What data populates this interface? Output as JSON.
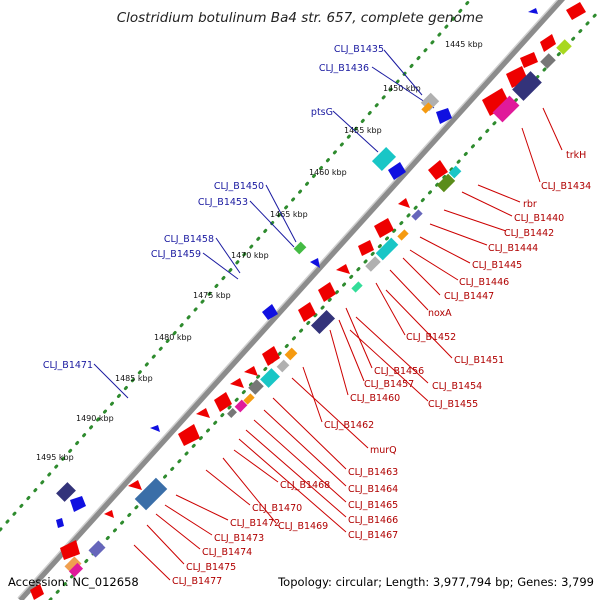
{
  "title": "Clostridium botulinum Ba4 str. 657, complete genome",
  "footer": {
    "accession": "Accession: NC_012658",
    "summary": "Topology: circular; Length: 3,977,794 bp; Genes: 3,799"
  },
  "ticks": [
    "1445 kbp",
    "1450 kbp",
    "1455 kbp",
    "1460 kbp",
    "1465 kbp",
    "1470 kbp",
    "1475 kbp",
    "1480 kbp",
    "1485 kbp",
    "1490 kbp",
    "1495 kbp"
  ],
  "outer_labels": [
    "CLJ_B1435",
    "CLJ_B1436",
    "ptsG",
    "CLJ_B1450",
    "CLJ_B1453",
    "CLJ_B1458",
    "CLJ_B1459",
    "CLJ_B1471"
  ],
  "inner_labels": [
    "trkH",
    "CLJ_B1434",
    "rbr",
    "CLJ_B1440",
    "CLJ_B1442",
    "CLJ_B1444",
    "CLJ_B1445",
    "CLJ_B1446",
    "CLJ_B1447",
    "noxA",
    "CLJ_B1452",
    "CLJ_B1451",
    "CLJ_B1456",
    "CLJ_B1457",
    "CLJ_B1454",
    "CLJ_B1460",
    "CLJ_B1455",
    "CLJ_B1462",
    "murQ",
    "CLJ_B1463",
    "CLJ_B1464",
    "CLJ_B1465",
    "CLJ_B1466",
    "CLJ_B1467",
    "CLJ_B1468",
    "CLJ_B1469",
    "CLJ_B1470",
    "CLJ_B1472",
    "CLJ_B1473",
    "CLJ_B1474",
    "CLJ_B1475",
    "CLJ_B1477"
  ],
  "colors": {
    "backbone": "#8c8c8c",
    "outer_dots": "#2e8b2e",
    "label_outer": "#1a1aa0",
    "label_inner": "#b00000",
    "gene_red": "#ee0000",
    "gene_blue": "#1010e0",
    "gene_navy": "#33337a",
    "gene_cyan": "#19c6c6",
    "gene_magenta": "#e01a9a",
    "gene_olive": "#5a8c1a",
    "gene_orange": "#f59a10",
    "gene_grey": "#9a9a9a"
  }
}
